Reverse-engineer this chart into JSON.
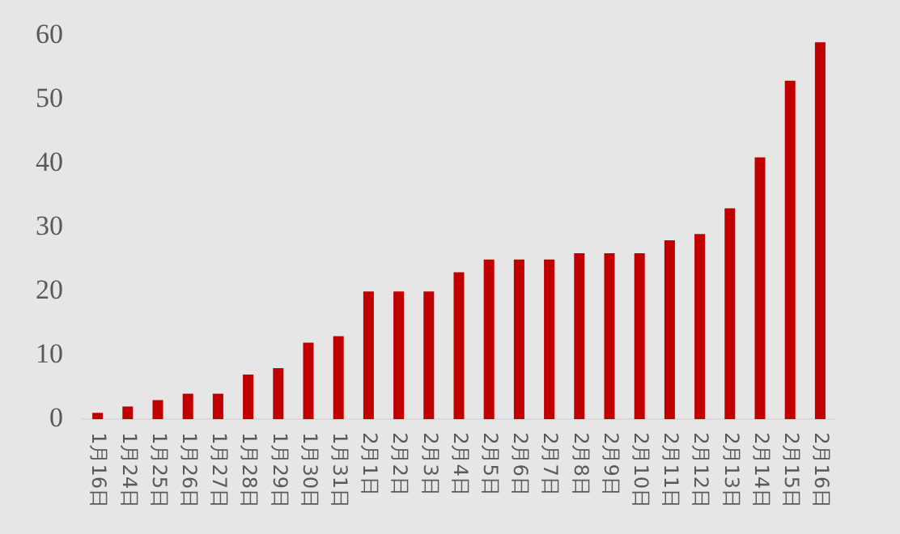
{
  "chart_data": {
    "type": "bar",
    "categories": [
      "1月16日",
      "1月24日",
      "1月25日",
      "1月26日",
      "1月27日",
      "1月28日",
      "1月29日",
      "1月30日",
      "1月31日",
      "2月1日",
      "2月2日",
      "2月3日",
      "2月4日",
      "2月5日",
      "2月6日",
      "2月7日",
      "2月8日",
      "2月9日",
      "2月10日",
      "2月11日",
      "2月12日",
      "2月13日",
      "2月14日",
      "2月15日",
      "2月16日"
    ],
    "values": [
      1,
      2,
      3,
      4,
      4,
      7,
      8,
      12,
      13,
      20,
      20,
      20,
      23,
      25,
      25,
      25,
      26,
      26,
      26,
      28,
      29,
      33,
      41,
      53,
      59
    ],
    "color": "#c00000",
    "ylim": [
      0,
      60
    ],
    "yticks": [
      0,
      10,
      20,
      30,
      40,
      50,
      60
    ],
    "grid": false,
    "legend": false
  }
}
